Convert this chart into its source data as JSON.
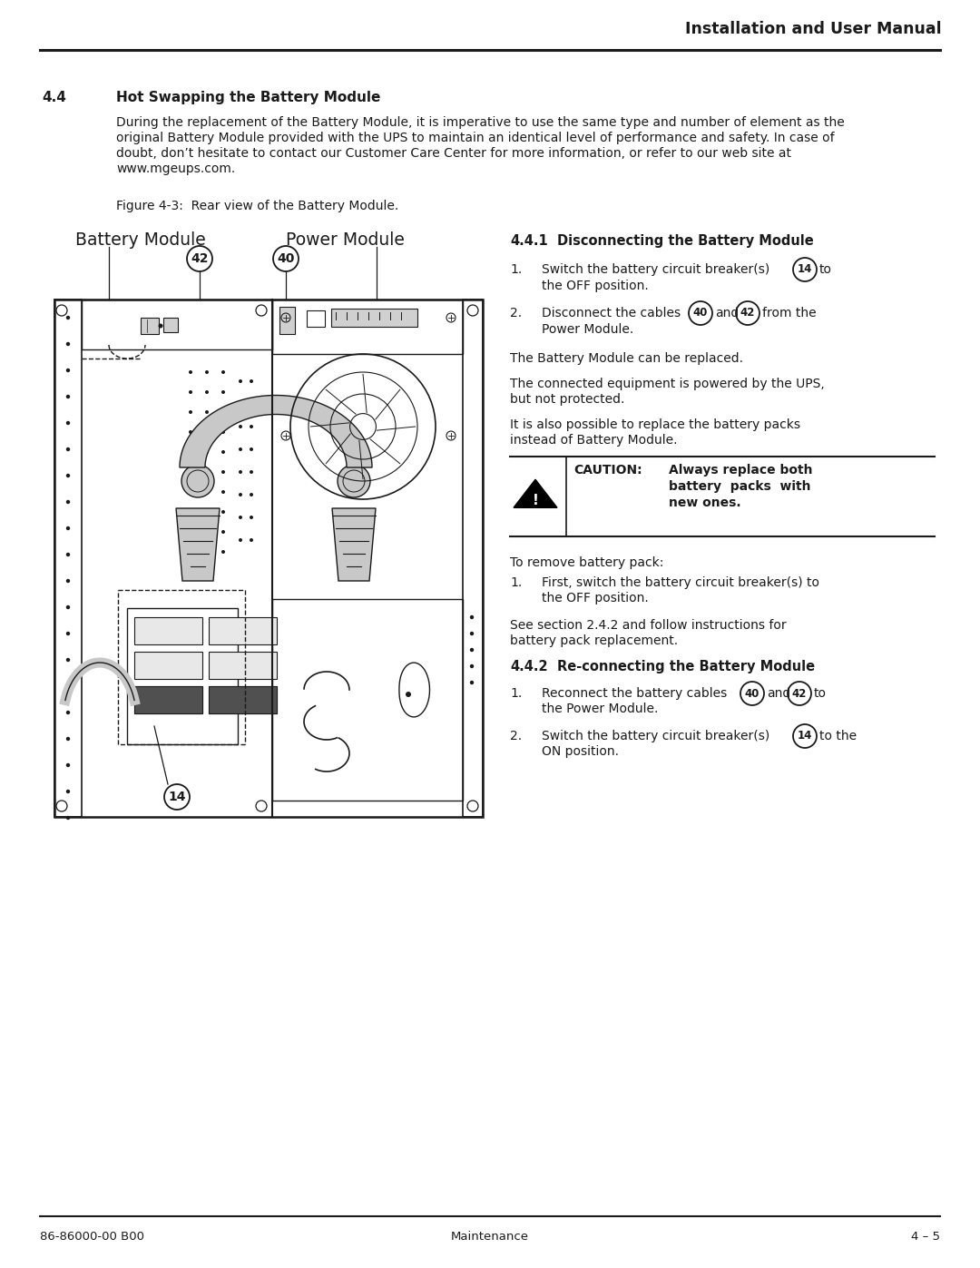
{
  "page_title": "Installation and User Manual",
  "footer_left": "86-86000-00 B00",
  "footer_center": "Maintenance",
  "footer_right": "4 – 5",
  "section_num": "4.4",
  "section_title": "Hot Swapping the Battery Module",
  "body_line1": "During the replacement of the Battery Module, it is imperative to use the same type and number of element as the",
  "body_line2": "original Battery Module provided with the UPS to maintain an identical level of performance and safety. In case of",
  "body_line3": "doubt, don’t hesitate to contact our Customer Care Center for more information, or refer to our web site at",
  "body_line4": "www.mgeups.com.",
  "figure_caption": "Figure 4-3:  Rear view of the Battery Module.",
  "subsection_441": "4.4.1",
  "subsection_441_title": "Disconnecting the Battery Module",
  "subsection_442": "4.4.2",
  "subsection_442_title": "Re-connecting the Battery Module",
  "bg_color": "#ffffff",
  "text_color": "#1a1a1a",
  "line_color": "#1a1a1a",
  "gray_cable": "#c8c8c8",
  "dark_gray": "#808080"
}
